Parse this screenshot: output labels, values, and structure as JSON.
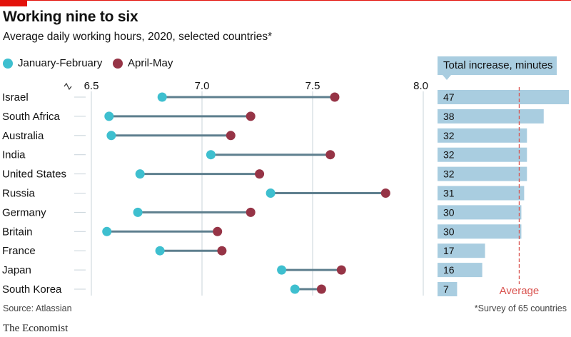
{
  "header": {
    "title": "Working nine to six",
    "subtitle": "Average daily working hours, 2020, selected countries*"
  },
  "legend": [
    {
      "label": "January-February",
      "color": "#3ebfcf"
    },
    {
      "label": "April-May",
      "color": "#963446"
    }
  ],
  "panel": {
    "title": "Total increase, minutes",
    "average_label": "Average",
    "bar_color": "#a9cde0",
    "average_color": "#d9534f"
  },
  "footer": {
    "source": "Source: Atlassian",
    "note": "*Survey of 65 countries",
    "brand": "The Economist"
  },
  "chart_data": [
    {
      "type": "dumbbell",
      "xlim": [
        6.5,
        8.0
      ],
      "xticks": [
        "6.5",
        "7.0",
        "7.5",
        "8.0"
      ],
      "grid": true,
      "categories": [
        "Israel",
        "South Africa",
        "Australia",
        "India",
        "United States",
        "Russia",
        "Germany",
        "Britain",
        "France",
        "Japan",
        "South Korea"
      ],
      "series": [
        {
          "name": "January-February",
          "values": [
            6.82,
            6.58,
            6.59,
            7.04,
            6.72,
            7.31,
            6.71,
            6.57,
            6.81,
            7.36,
            7.42
          ]
        },
        {
          "name": "April-May",
          "values": [
            7.6,
            7.22,
            7.13,
            7.58,
            7.26,
            7.83,
            7.22,
            7.07,
            7.09,
            7.63,
            7.54
          ]
        }
      ]
    },
    {
      "type": "bar",
      "title": "Total increase, minutes",
      "categories": [
        "Israel",
        "South Africa",
        "Australia",
        "India",
        "United States",
        "Russia",
        "Germany",
        "Britain",
        "France",
        "Japan",
        "South Korea"
      ],
      "values": [
        47,
        38,
        32,
        32,
        32,
        31,
        30,
        30,
        17,
        16,
        7
      ],
      "xlim": [
        0,
        47
      ],
      "average_line": 30
    }
  ]
}
